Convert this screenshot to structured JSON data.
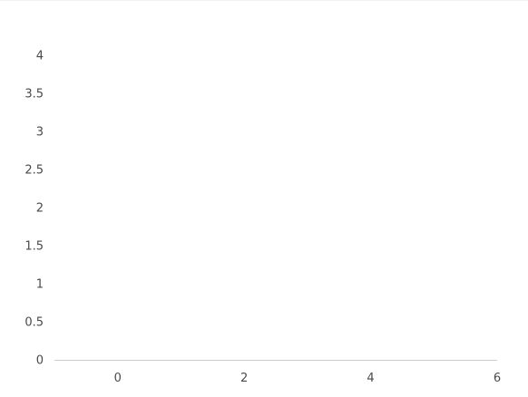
{
  "chart_data": {
    "type": "line",
    "title": "",
    "xlabel": "",
    "ylabel": "",
    "x": [],
    "series": [],
    "xlim": [
      -1,
      6
    ],
    "ylim": [
      0,
      4
    ],
    "x_ticks": [
      "0",
      "2",
      "4",
      "6"
    ],
    "x_tick_values": [
      0,
      2,
      4,
      6
    ],
    "y_ticks": [
      "0",
      "0.5",
      "1",
      "1.5",
      "2",
      "2.5",
      "3",
      "3.5",
      "4"
    ],
    "y_tick_values": [
      0,
      0.5,
      1,
      1.5,
      2,
      2.5,
      3,
      3.5,
      4
    ],
    "grid": false,
    "legend": "none",
    "colors": {
      "axis_line": "#cccccc",
      "tick_text": "#4a4a4a",
      "background": "#ffffff"
    }
  }
}
